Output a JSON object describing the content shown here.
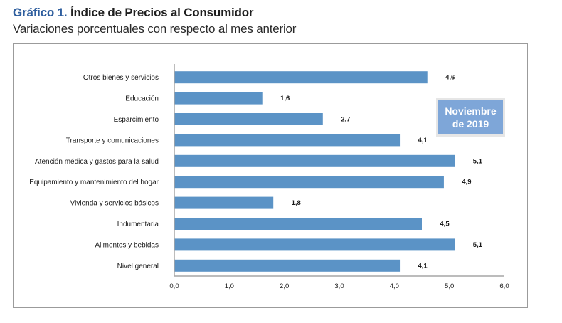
{
  "header": {
    "title_number": "Gráfico 1.",
    "title_text": "Índice de Precios al Consumidor",
    "subtitle": "Variaciones porcentuales con respecto al mes anterior"
  },
  "annotation": {
    "line1": "Noviembre",
    "line2": "de 2019"
  },
  "colors": {
    "bar": "#5b93c6",
    "title_accent": "#2e5e9e",
    "annotation_fill": "#7ea6d8"
  },
  "chart_data": {
    "type": "bar",
    "orientation": "horizontal",
    "title": "Índice de Precios al Consumidor",
    "subtitle": "Variaciones porcentuales con respecto al mes anterior",
    "xlabel": "",
    "ylabel": "",
    "categories": [
      "Otros bienes y servicios",
      "Educación",
      "Esparcimiento",
      "Transporte y comunicaciones",
      "Atención médica y gastos para la salud",
      "Equipamiento y  mantenimiento del hogar",
      "Vivienda y servicios básicos",
      "Indumentaria",
      "Alimentos y bebidas",
      "Nivel  general"
    ],
    "values": [
      4.6,
      1.6,
      2.7,
      4.1,
      5.1,
      4.9,
      1.8,
      4.5,
      5.1,
      4.1
    ],
    "value_labels": [
      "4,6",
      "1,6",
      "2,7",
      "4,1",
      "5,1",
      "4,9",
      "1,8",
      "4,5",
      "5,1",
      "4,1"
    ],
    "xlim": [
      0,
      6
    ],
    "xticks": [
      0,
      1,
      2,
      3,
      4,
      5,
      6
    ],
    "xtick_labels": [
      "0,0",
      "1,0",
      "2,0",
      "3,0",
      "4,0",
      "5,0",
      "6,0"
    ],
    "grid": false,
    "legend": "none",
    "annotation": "Noviembre de 2019"
  }
}
